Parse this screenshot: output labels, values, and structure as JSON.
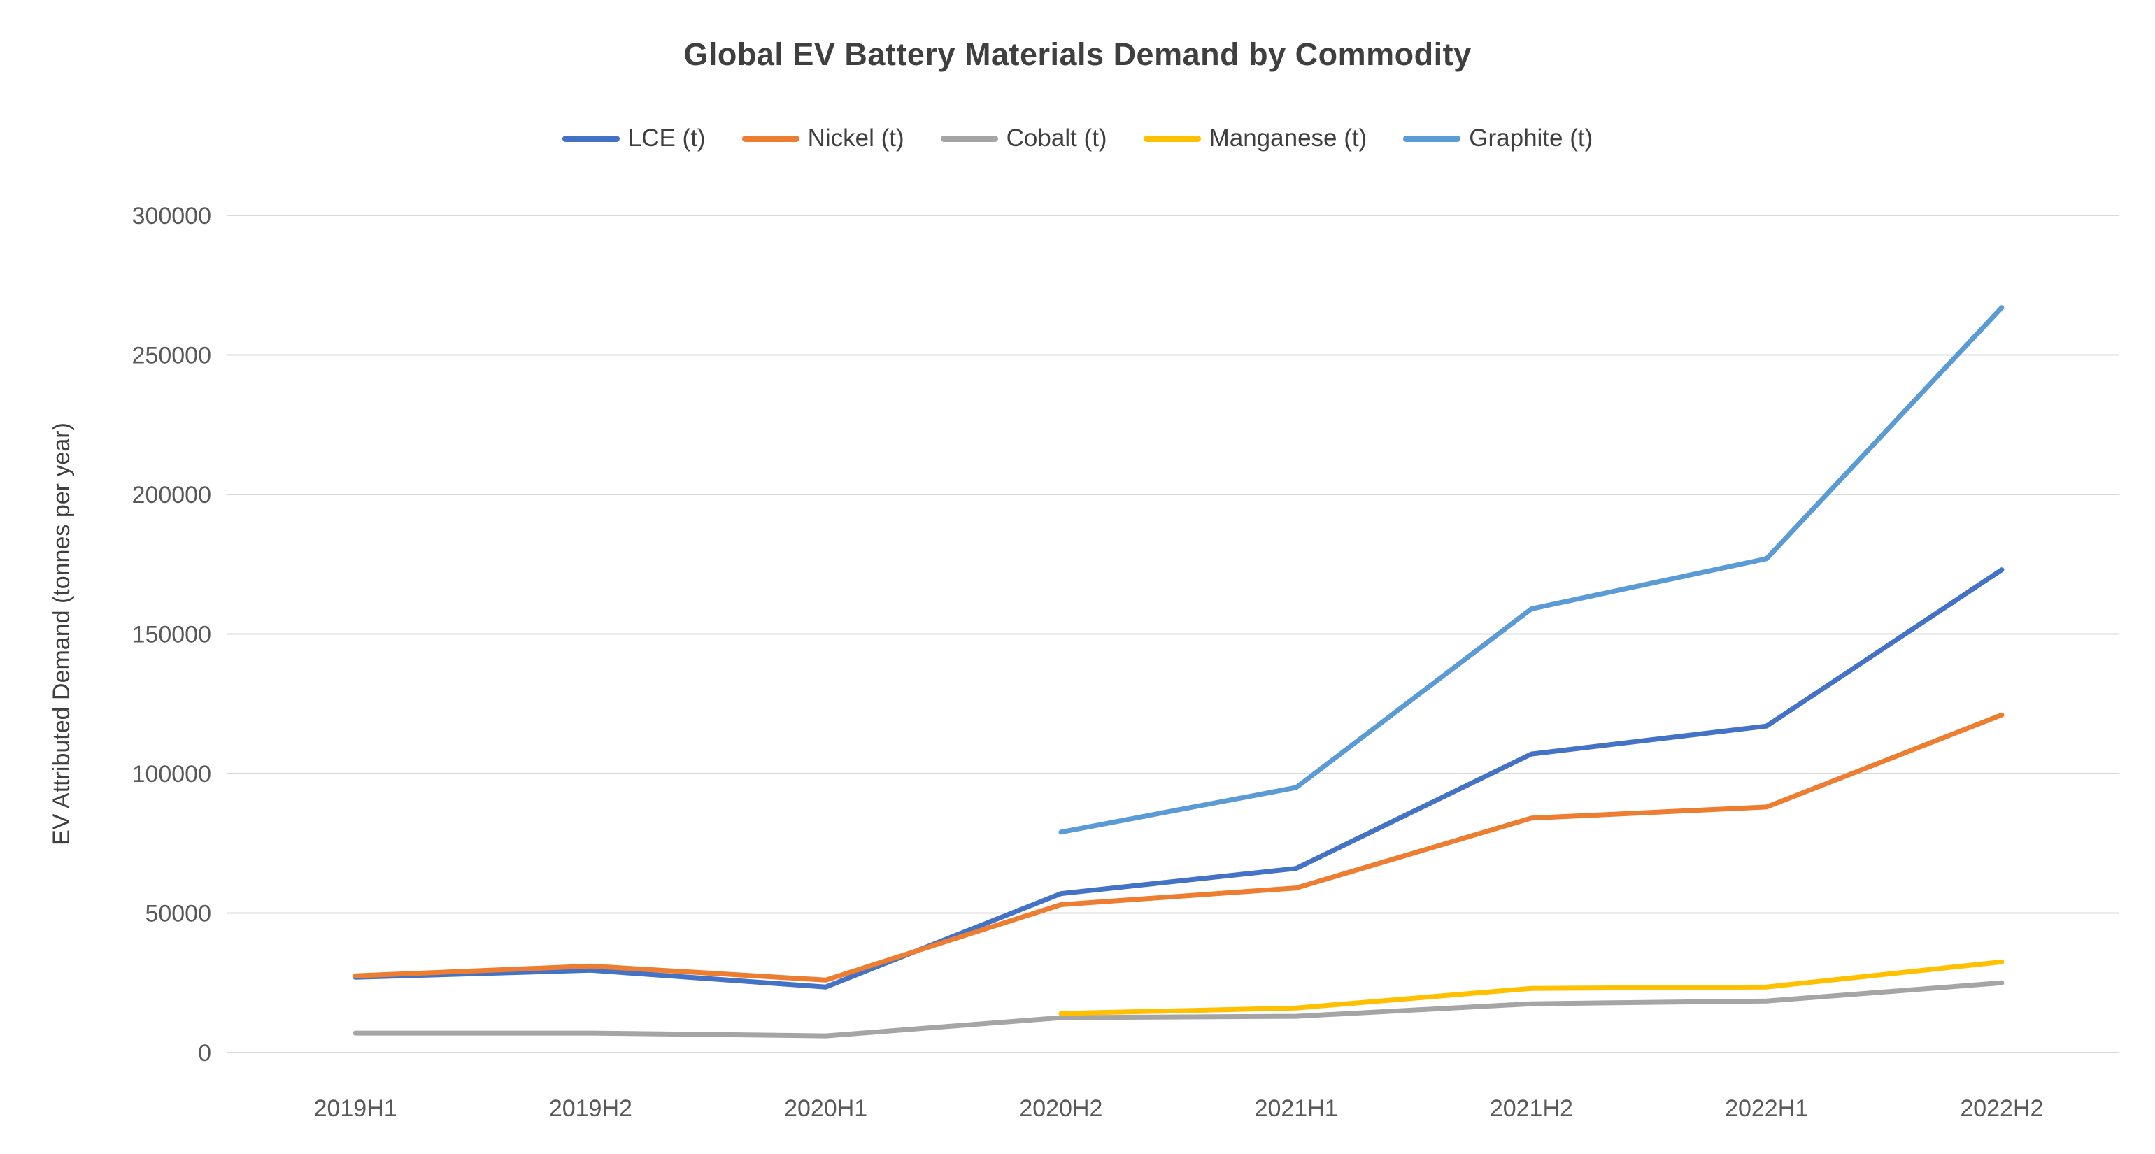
{
  "chart_data": {
    "type": "line",
    "title": "Global EV Battery Materials Demand by Commodity",
    "xlabel": "",
    "ylabel": "EV Attributed Demand (tonnes per year)",
    "ylim": [
      0,
      300000
    ],
    "yticks": [
      0,
      50000,
      100000,
      150000,
      200000,
      250000,
      300000
    ],
    "grid": true,
    "legend_position": "top",
    "categories": [
      "2019H1",
      "2019H2",
      "2020H1",
      "2020H2",
      "2021H1",
      "2021H2",
      "2022H1",
      "2022H2"
    ],
    "series": [
      {
        "name": "LCE (t)",
        "color": "#4472C4",
        "values": [
          27000,
          29500,
          23500,
          57000,
          66000,
          107000,
          117000,
          173000
        ]
      },
      {
        "name": "Nickel (t)",
        "color": "#ED7D31",
        "values": [
          27500,
          31000,
          26000,
          53000,
          59000,
          84000,
          88000,
          121000
        ]
      },
      {
        "name": "Cobalt (t)",
        "color": "#A5A5A5",
        "values": [
          7000,
          7000,
          6000,
          12500,
          13000,
          17500,
          18500,
          25000
        ]
      },
      {
        "name": "Manganese (t)",
        "color": "#FFC000",
        "values": [
          null,
          null,
          null,
          14000,
          16000,
          23000,
          23500,
          32500
        ]
      },
      {
        "name": "Graphite (t)",
        "color": "#5B9BD5",
        "values": [
          null,
          null,
          null,
          79000,
          95000,
          159000,
          177000,
          267000
        ]
      }
    ],
    "style": {
      "background": "#FFFFFF",
      "grid_color": "#D9D9D9",
      "axis_text_color": "#595959",
      "title_color": "#3F3F3F",
      "line_width": 7
    }
  }
}
